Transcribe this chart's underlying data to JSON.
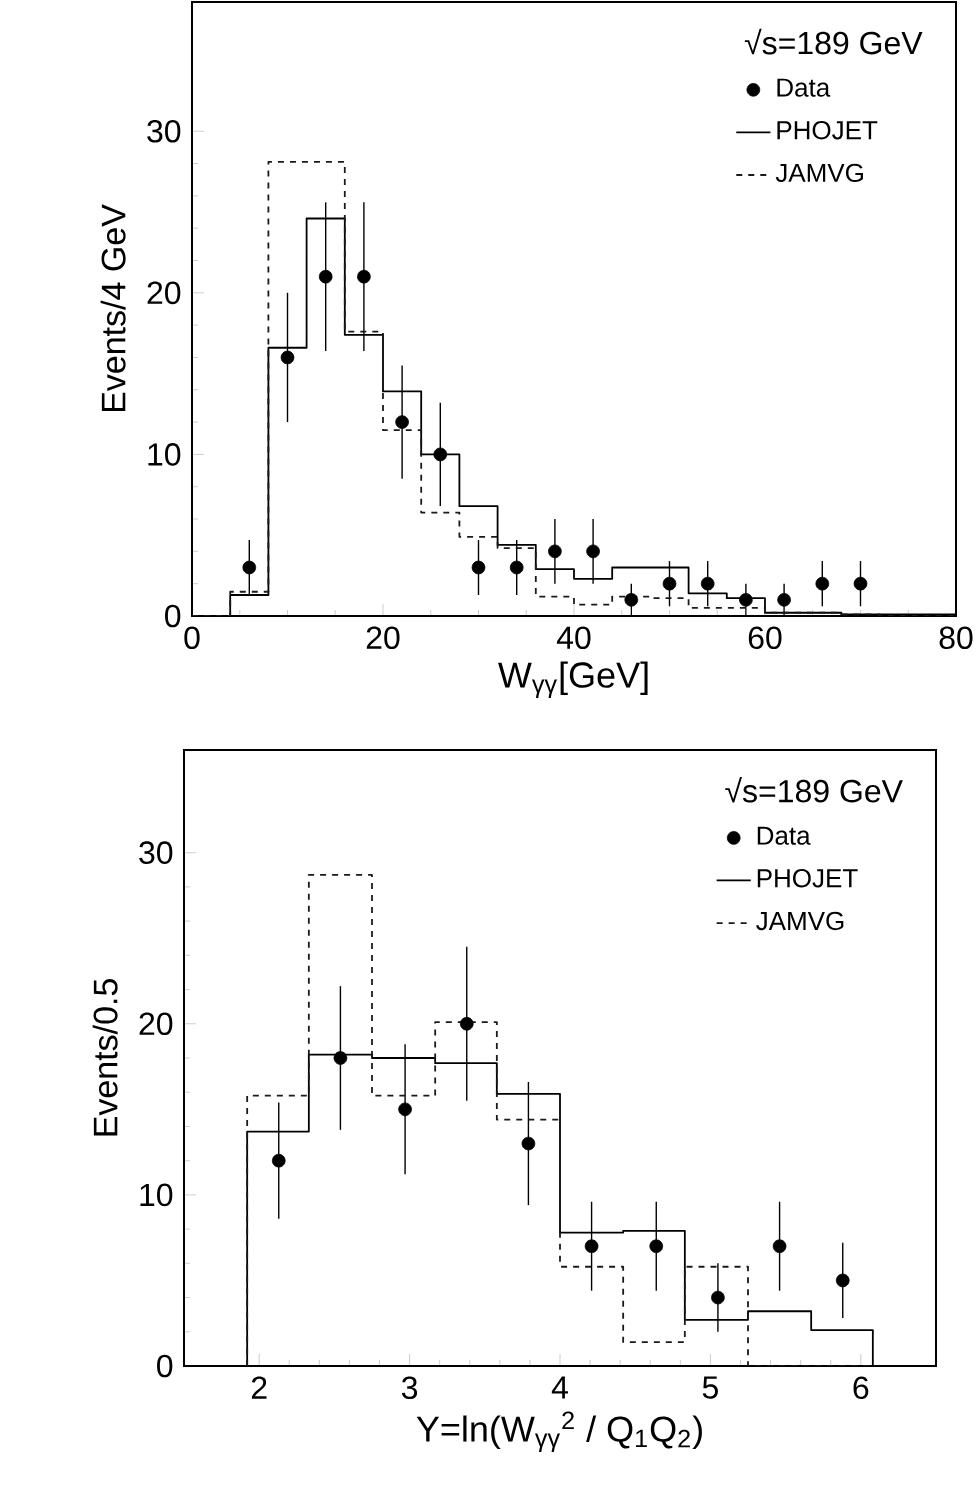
{
  "chart_data": [
    {
      "type": "histogram",
      "xlabel": "W$_{γγ}$[GeV]",
      "ylabel": "Events/4 GeV",
      "legend_title": "√s=189 GeV",
      "legend": "top right",
      "bins": [
        0,
        4,
        8,
        12,
        16,
        20,
        24,
        28,
        32,
        36,
        40,
        44,
        48,
        52,
        56,
        60,
        64,
        68,
        72,
        76,
        80
      ],
      "xlim": [
        0,
        80
      ],
      "ylim": [
        0,
        38
      ],
      "xticks": [
        0,
        20,
        40,
        60,
        80
      ],
      "yticks": [
        0,
        10,
        20,
        30
      ],
      "series": [
        {
          "name": "Data",
          "type": "scatter",
          "color": "#000000",
          "x": [
            6,
            10,
            14,
            18,
            22,
            26,
            30,
            34,
            38,
            42,
            46,
            50,
            54,
            58,
            62,
            66,
            70
          ],
          "values": [
            3,
            16,
            21,
            21,
            12,
            10,
            3,
            3,
            4,
            4,
            1,
            2,
            2,
            1,
            1,
            2,
            2
          ],
          "errors": [
            1.7,
            4,
            4.6,
            4.6,
            3.5,
            3.2,
            1.7,
            1.7,
            2,
            2,
            1,
            1.4,
            1.4,
            1,
            1,
            1.4,
            1.4
          ]
        },
        {
          "name": "PHOJET",
          "color": "#000000",
          "line_style": "solid",
          "values": [
            0,
            1.3,
            16.6,
            24.6,
            17.4,
            13.9,
            10,
            6.8,
            4.4,
            2.9,
            2.3,
            3.0,
            3.0,
            1.4,
            1.1,
            0.2,
            0.2,
            0.1,
            0.1,
            0.1
          ]
        },
        {
          "name": "JAMVG",
          "color": "#1a1a1a",
          "line_style": "dashed",
          "values": [
            0,
            1.5,
            28.1,
            28.1,
            17.6,
            11.5,
            6.4,
            4.9,
            4.2,
            1.2,
            0.7,
            1.2,
            1.1,
            0.5,
            0.5,
            0.2,
            0.2,
            0.1,
            0,
            0
          ]
        }
      ]
    },
    {
      "type": "histogram",
      "xlabel": "Y=ln(W$_{γγ}$$^{2}$ / Q$_{1}$Q$_{2}$)",
      "ylabel": "Events/0.5",
      "legend_title": "√s=189 GeV",
      "legend": "top right",
      "bins": [
        1.92,
        2.33,
        2.75,
        3.17,
        3.58,
        4.0,
        4.42,
        4.83,
        5.25,
        5.67,
        6.08
      ],
      "xlim": [
        1.5,
        6.5
      ],
      "ylim": [
        0,
        36
      ],
      "xticks": [
        2,
        3,
        4,
        5,
        6
      ],
      "yticks": [
        0,
        10,
        20,
        30
      ],
      "series": [
        {
          "name": "Data",
          "type": "scatter",
          "color": "#000000",
          "x": [
            2.13,
            2.54,
            2.97,
            3.38,
            3.79,
            4.21,
            4.64,
            5.05,
            5.46,
            5.88
          ],
          "values": [
            12,
            18,
            15,
            20,
            13,
            7,
            7,
            4,
            7,
            5
          ],
          "errors": [
            3.4,
            4.2,
            3.8,
            4.5,
            3.6,
            2.6,
            2.6,
            2,
            2.6,
            2.2
          ]
        },
        {
          "name": "PHOJET",
          "color": "#000000",
          "line_style": "solid",
          "values": [
            13.7,
            18.2,
            18.0,
            17.7,
            15.9,
            7.8,
            7.9,
            2.7,
            3.2,
            2.1
          ]
        },
        {
          "name": "JAMVG",
          "color": "#1a1a1a",
          "line_style": "dashed",
          "values": [
            15.8,
            28.7,
            15.8,
            20.1,
            14.4,
            5.8,
            1.4,
            5.8,
            0,
            0
          ]
        }
      ]
    }
  ]
}
